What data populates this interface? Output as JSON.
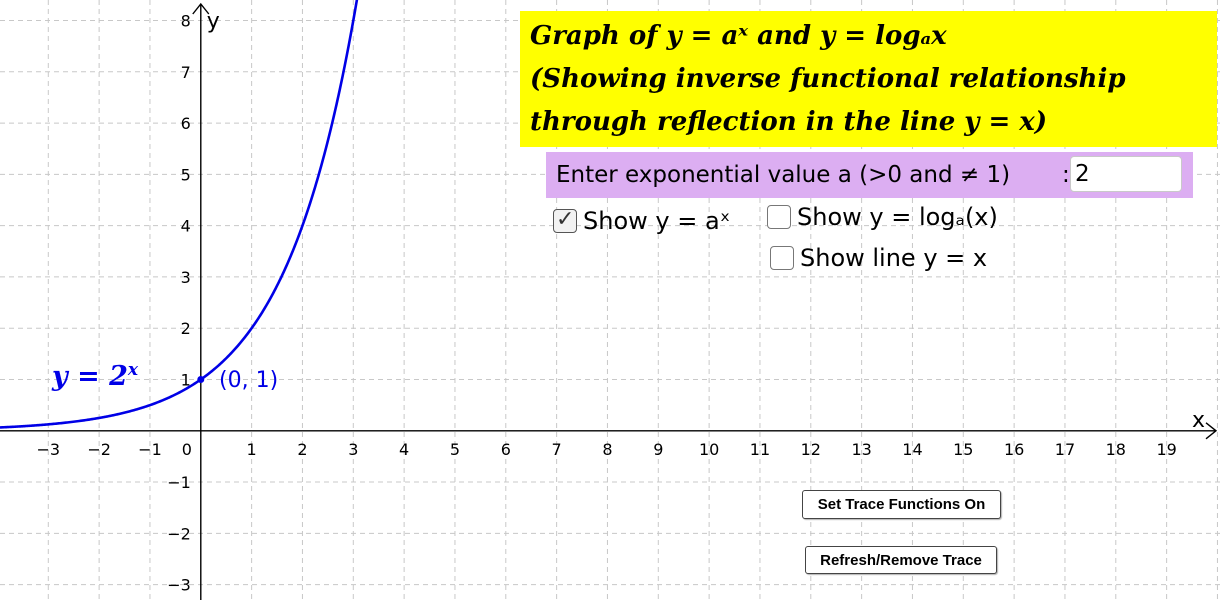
{
  "graph": {
    "x_axis_name": "x",
    "y_axis_name": "y",
    "x_ticks": [
      "−3",
      "−2",
      "−1",
      "1",
      "2",
      "3",
      "4",
      "5",
      "6",
      "7",
      "8",
      "9",
      "10",
      "11",
      "12",
      "13",
      "14",
      "15",
      "16",
      "17",
      "18",
      "19"
    ],
    "y_ticks_pos": [
      "1",
      "2",
      "3",
      "4",
      "5",
      "6",
      "7",
      "8"
    ],
    "y_ticks_neg": [
      "−1",
      "−2",
      "−3"
    ],
    "origin_label": "0",
    "curve_color": "#0000e6",
    "curve_label_base": "y = 2",
    "curve_label_exp": "x",
    "point_label": "(0, 1)"
  },
  "chart_data": {
    "type": "line",
    "series": [
      {
        "name": "y = 2^x",
        "x": [
          -4,
          -3,
          -2,
          -1,
          0,
          1,
          2,
          3,
          3.1
        ],
        "values": [
          0.0625,
          0.125,
          0.25,
          0.5,
          1,
          2,
          4,
          8,
          8.57
        ]
      }
    ],
    "points": [
      {
        "x": 0,
        "y": 1,
        "label": "(0, 1)"
      }
    ],
    "xlim": [
      -3.95,
      20.05
    ],
    "ylim": [
      -3.3,
      8.4
    ],
    "grid": true
  },
  "title_box": {
    "line1": "Graph of y = aˣ  and  y = logₐx",
    "line2": "(Showing inverse functional relationship",
    "line3": "through reflection in the line y = x)",
    "color": "#ffff00"
  },
  "input": {
    "label": "Enter exponential value a (>0 and ≠ 1)",
    "colon": ":",
    "value": "2",
    "color": "#dcaef2"
  },
  "checkboxes": {
    "show_exp": {
      "label": "Show y = aˣ",
      "checked": true
    },
    "show_log": {
      "label": "Show  y = logₐ(x)",
      "checked": false
    },
    "show_line": {
      "label": "Show line y = x",
      "checked": false
    }
  },
  "buttons": {
    "trace_on": "Set Trace Functions On",
    "refresh": "Refresh/Remove Trace"
  }
}
